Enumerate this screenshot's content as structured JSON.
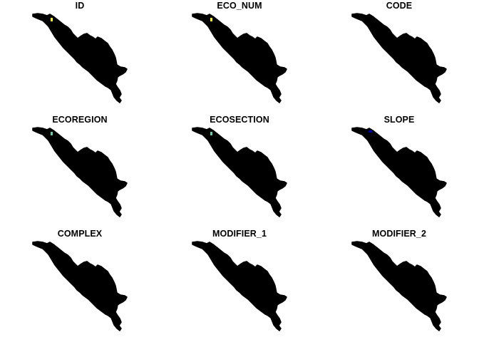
{
  "panels": [
    {
      "title": "ID",
      "accent": "#ffff33"
    },
    {
      "title": "ECO_NUM",
      "accent": "#ffff33"
    },
    {
      "title": "CODE",
      "accent": ""
    },
    {
      "title": "ECOREGION",
      "accent": "#66ccaa"
    },
    {
      "title": "ECOSECTION",
      "accent": "#66ccaa"
    },
    {
      "title": "SLOPE",
      "accent": "#0000aa"
    },
    {
      "title": "COMPLEX",
      "accent": ""
    },
    {
      "title": "MODIFIER_1",
      "accent": ""
    },
    {
      "title": "MODIFIER_2",
      "accent": ""
    }
  ],
  "colors": {
    "fill": "#000000",
    "background": "#ffffff"
  }
}
